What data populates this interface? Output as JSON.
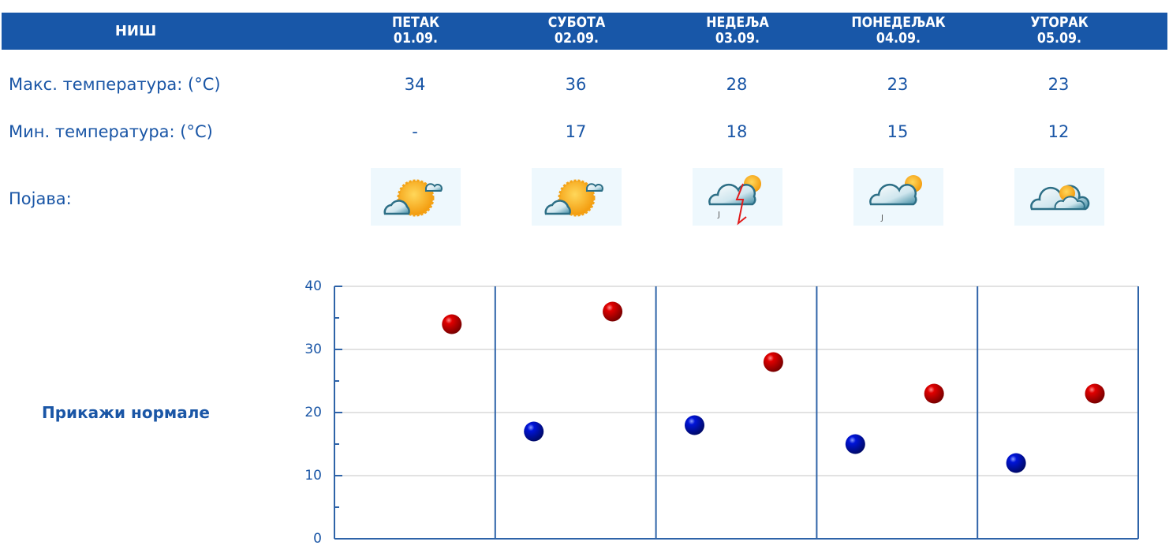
{
  "header": {
    "city": "НИШ",
    "days": [
      {
        "name": "ПЕТАК",
        "date": "01.09."
      },
      {
        "name": "СУБОТА",
        "date": "02.09."
      },
      {
        "name": "НЕДЕЉА",
        "date": "03.09."
      },
      {
        "name": "ПОНЕДЕЉАК",
        "date": "04.09."
      },
      {
        "name": "УТОРАК",
        "date": "05.09."
      }
    ]
  },
  "rows": {
    "max_label": "Макс. температура: (°C)",
    "min_label": "Мин. температура: (°C)",
    "phenomenon_label": "Појава:",
    "max_values": [
      "34",
      "36",
      "28",
      "23",
      "23"
    ],
    "min_values": [
      "-",
      "17",
      "18",
      "15",
      "12"
    ],
    "icons": [
      "sun-partly-cloudy-icon",
      "sun-partly-cloudy-icon",
      "thunderstorm-sun-icon",
      "cloudy-light-rain-sun-icon",
      "cloudy-sun-icon"
    ]
  },
  "normals_link": "Прикажи нормале",
  "colors": {
    "header_bg": "#1857a8",
    "text": "#1a56a6",
    "axis": "#2e63a8",
    "grid": "#e2e2e2",
    "max_marker": "#d00000",
    "min_marker": "#0010c8"
  },
  "chart_data": {
    "type": "scatter",
    "title": "",
    "xlabel": "",
    "ylabel": "",
    "categories": [
      "01.09.",
      "02.09.",
      "03.09.",
      "04.09.",
      "05.09."
    ],
    "series": [
      {
        "name": "Макс. температура",
        "color": "#d00000",
        "values": [
          34,
          36,
          28,
          23,
          23
        ]
      },
      {
        "name": "Мин. температура",
        "color": "#0010c8",
        "values": [
          null,
          17,
          18,
          15,
          12
        ]
      }
    ],
    "yticks": [
      "0",
      "10",
      "20",
      "30",
      "40"
    ],
    "ylim": [
      0,
      40
    ],
    "grid": true,
    "legend": "none"
  }
}
